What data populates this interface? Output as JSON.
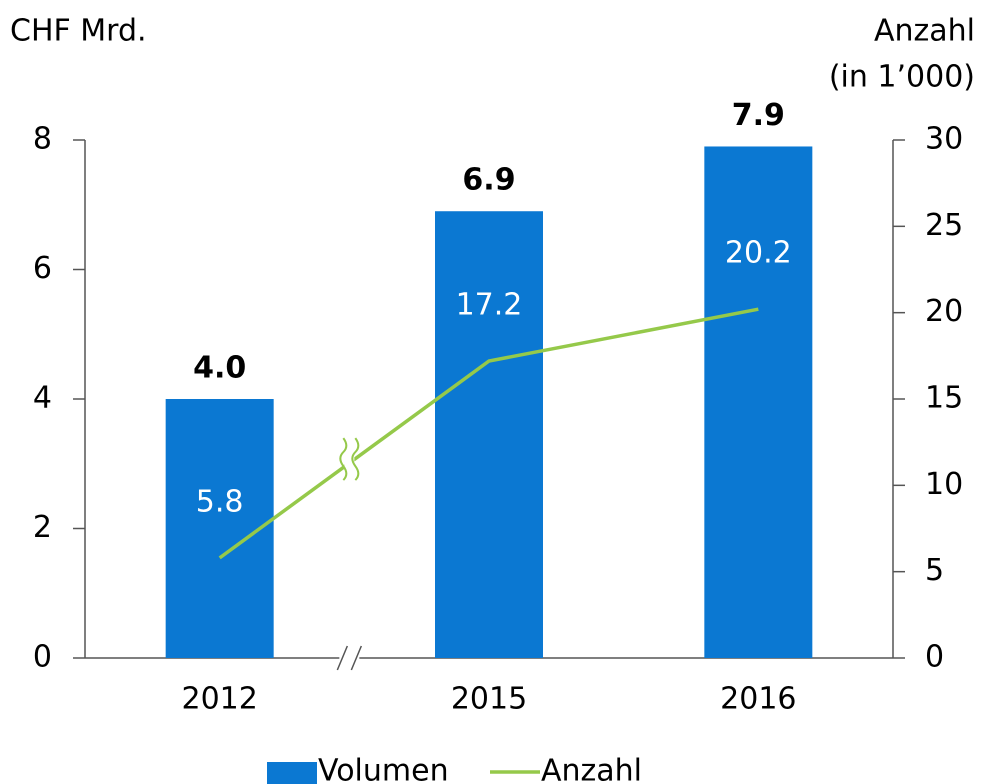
{
  "chart_data": {
    "type": "bar_line",
    "y_label": "CHF Mrd.",
    "y2_label_lines": [
      "Anzahl",
      "(in 1’000)"
    ],
    "categories": [
      "2012",
      "2015",
      "2016"
    ],
    "series": [
      {
        "name": "Volumen",
        "type": "bar",
        "color": "#0b78d2",
        "values": [
          4.0,
          6.9,
          7.9
        ],
        "value_labels": [
          "4.0",
          "6.9",
          "7.9"
        ]
      },
      {
        "name": "Anzahl",
        "type": "line",
        "color": "#95c94a",
        "axis": "y2",
        "values": [
          5.8,
          17.2,
          20.2
        ]
      }
    ],
    "ylim": [
      0,
      8
    ],
    "yticks": [
      0,
      2,
      4,
      6,
      8
    ],
    "y2lim": [
      0,
      30
    ],
    "y2ticks": [
      0,
      5,
      10,
      15,
      20,
      25,
      30
    ],
    "grid": false,
    "legend": "bottom"
  }
}
